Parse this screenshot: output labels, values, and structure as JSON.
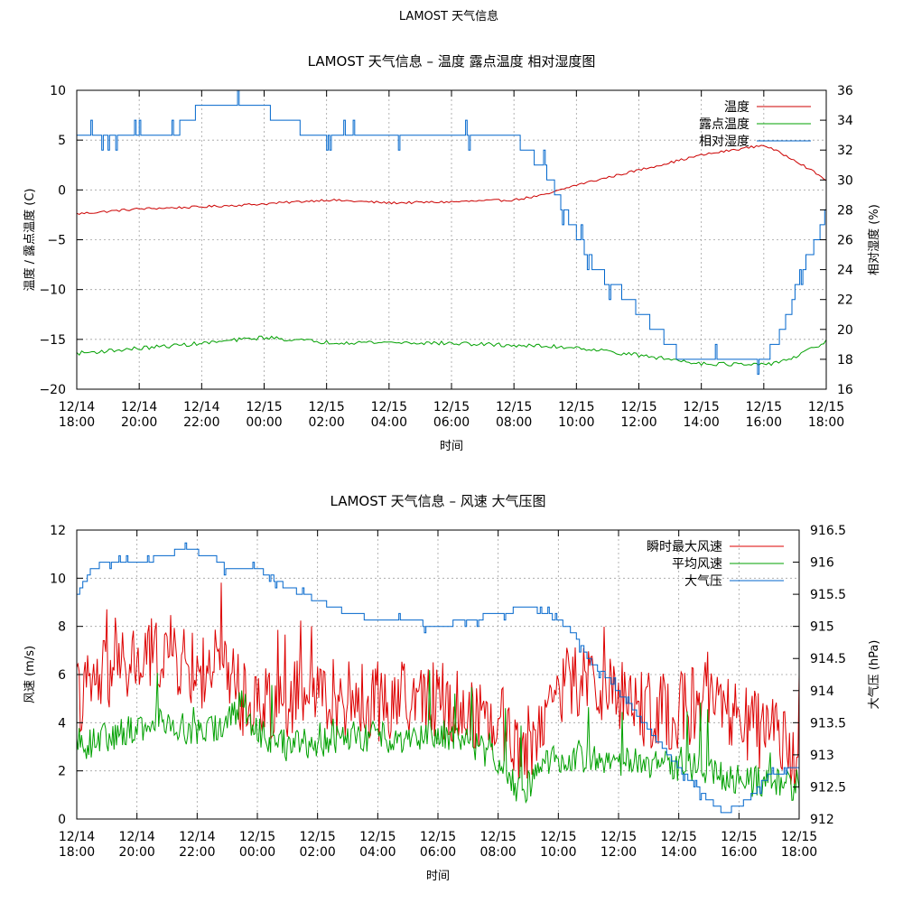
{
  "page_title": "LAMOST 天气信息",
  "chart_data": [
    {
      "type": "line",
      "title": "LAMOST 天气信息 – 温度 露点温度 相对湿度图",
      "xlabel": "时间",
      "ylabel": "温度 / 露点温度 (C)",
      "y2label": "相对湿度 (%)",
      "x_tick_labels": [
        [
          "12/14",
          "18:00"
        ],
        [
          "12/14",
          "20:00"
        ],
        [
          "12/14",
          "22:00"
        ],
        [
          "12/15",
          "00:00"
        ],
        [
          "12/15",
          "02:00"
        ],
        [
          "12/15",
          "04:00"
        ],
        [
          "12/15",
          "06:00"
        ],
        [
          "12/15",
          "08:00"
        ],
        [
          "12/15",
          "10:00"
        ],
        [
          "12/15",
          "12:00"
        ],
        [
          "12/15",
          "14:00"
        ],
        [
          "12/15",
          "16:00"
        ],
        [
          "12/15",
          "18:00"
        ]
      ],
      "xlim": [
        0,
        24
      ],
      "ylim": [
        -20,
        10
      ],
      "y_ticks": [
        10,
        5,
        0,
        -5,
        -10,
        -15,
        -20
      ],
      "y_tick_labels": [
        "10",
        "5",
        "0",
        "−5",
        "−10",
        "−15",
        "−20"
      ],
      "y2lim": [
        16,
        36
      ],
      "y2_ticks": [
        36,
        34,
        32,
        30,
        28,
        26,
        24,
        22,
        20,
        18,
        16
      ],
      "y2_tick_labels": [
        "36",
        "34",
        "32",
        "30",
        "28",
        "26",
        "24",
        "22",
        "20",
        "18",
        "16"
      ],
      "legend_position": "top-right",
      "series": [
        {
          "name": "温度",
          "color": "#cc0000",
          "axis": "y",
          "noise": 0.12,
          "points": [
            [
              0,
              -2.4
            ],
            [
              2,
              -1.9
            ],
            [
              4,
              -1.7
            ],
            [
              6,
              -1.4
            ],
            [
              8,
              -1.0
            ],
            [
              10,
              -1.3
            ],
            [
              12,
              -1.2
            ],
            [
              14,
              -1.0
            ],
            [
              15,
              -0.5
            ],
            [
              16,
              0.5
            ],
            [
              18,
              2.0
            ],
            [
              20,
              3.5
            ],
            [
              22,
              4.5
            ],
            [
              23,
              3.0
            ],
            [
              24,
              1.0
            ]
          ]
        },
        {
          "name": "露点温度",
          "color": "#00a000",
          "axis": "y",
          "noise": 0.2,
          "points": [
            [
              0,
              -16.4
            ],
            [
              2,
              -15.9
            ],
            [
              4,
              -15.4
            ],
            [
              6,
              -14.8
            ],
            [
              8,
              -15.3
            ],
            [
              10,
              -15.3
            ],
            [
              12,
              -15.4
            ],
            [
              14,
              -15.6
            ],
            [
              16,
              -15.8
            ],
            [
              18,
              -16.6
            ],
            [
              20,
              -17.4
            ],
            [
              22,
              -17.6
            ],
            [
              23,
              -16.8
            ],
            [
              24,
              -15.2
            ]
          ]
        },
        {
          "name": "相对湿度",
          "color": "#0066cc",
          "axis": "y2",
          "noise": 0,
          "points": [
            [
              0,
              33
            ],
            [
              3,
              33
            ],
            [
              3.5,
              34
            ],
            [
              4,
              35
            ],
            [
              6,
              35
            ],
            [
              6.3,
              34
            ],
            [
              7,
              33.6
            ],
            [
              8,
              33
            ],
            [
              14,
              33
            ],
            [
              14.4,
              32
            ],
            [
              14.9,
              31
            ],
            [
              15.2,
              30
            ],
            [
              15.6,
              28
            ],
            [
              16.1,
              26
            ],
            [
              16.6,
              24
            ],
            [
              17.2,
              23
            ],
            [
              17.7,
              22
            ],
            [
              18.1,
              21
            ],
            [
              18.6,
              20
            ],
            [
              19,
              19
            ],
            [
              19.4,
              18
            ],
            [
              20,
              18
            ],
            [
              21,
              18
            ],
            [
              22,
              18
            ],
            [
              22.4,
              19
            ],
            [
              22.8,
              21
            ],
            [
              23.2,
              24
            ],
            [
              23.7,
              26
            ],
            [
              24,
              28
            ]
          ]
        }
      ]
    },
    {
      "type": "line",
      "title": "LAMOST 天气信息 – 风速 大气压图",
      "xlabel": "时间",
      "ylabel": "风速 (m/s)",
      "y2label": "大气压 (hPa)",
      "x_tick_labels": [
        [
          "12/14",
          "18:00"
        ],
        [
          "12/14",
          "20:00"
        ],
        [
          "12/14",
          "22:00"
        ],
        [
          "12/15",
          "00:00"
        ],
        [
          "12/15",
          "02:00"
        ],
        [
          "12/15",
          "04:00"
        ],
        [
          "12/15",
          "06:00"
        ],
        [
          "12/15",
          "08:00"
        ],
        [
          "12/15",
          "10:00"
        ],
        [
          "12/15",
          "12:00"
        ],
        [
          "12/15",
          "14:00"
        ],
        [
          "12/15",
          "16:00"
        ],
        [
          "12/15",
          "18:00"
        ]
      ],
      "xlim": [
        0,
        24
      ],
      "ylim": [
        0,
        12
      ],
      "y_ticks": [
        12,
        10,
        8,
        6,
        4,
        2,
        0
      ],
      "y_tick_labels": [
        "12",
        "10",
        "8",
        "6",
        "4",
        "2",
        "0"
      ],
      "y2lim": [
        912,
        916.5
      ],
      "y2_ticks": [
        916.5,
        916,
        915.5,
        915,
        914.5,
        914,
        913.5,
        913,
        912.5,
        912
      ],
      "y2_tick_labels": [
        "916.5",
        "916",
        "915.5",
        "915",
        "914.5",
        "914",
        "913.5",
        "913",
        "912.5",
        "912"
      ],
      "legend_position": "top-right",
      "series": [
        {
          "name": "瞬时最大风速",
          "color": "#dd0000",
          "axis": "y",
          "noise": 1.6,
          "points": [
            [
              0,
              5
            ],
            [
              1,
              6
            ],
            [
              2,
              6.5
            ],
            [
              3,
              7
            ],
            [
              4,
              6
            ],
            [
              5,
              6.5
            ],
            [
              5.5,
              5
            ],
            [
              6,
              4.8
            ],
            [
              7,
              5
            ],
            [
              8,
              5.2
            ],
            [
              9,
              5
            ],
            [
              10,
              4.8
            ],
            [
              11,
              5
            ],
            [
              12,
              5
            ],
            [
              13,
              4.5
            ],
            [
              14,
              4.2
            ],
            [
              14.8,
              2.8
            ],
            [
              15.2,
              3.5
            ],
            [
              16,
              5.5
            ],
            [
              17,
              5.8
            ],
            [
              18,
              5.2
            ],
            [
              19,
              4.5
            ],
            [
              20,
              4.5
            ],
            [
              21,
              5
            ],
            [
              22,
              4
            ],
            [
              23,
              3.5
            ],
            [
              24,
              2.8
            ]
          ]
        },
        {
          "name": "平均风速",
          "color": "#00a000",
          "axis": "y",
          "noise": 0.65,
          "points": [
            [
              0,
              3
            ],
            [
              1,
              3.4
            ],
            [
              2,
              3.8
            ],
            [
              3,
              4.2
            ],
            [
              4,
              3.5
            ],
            [
              5,
              4
            ],
            [
              5.5,
              4.8
            ],
            [
              6,
              3.6
            ],
            [
              7,
              3
            ],
            [
              8,
              3.2
            ],
            [
              9,
              3.4
            ],
            [
              10,
              3.4
            ],
            [
              11,
              3.4
            ],
            [
              12,
              3.6
            ],
            [
              13,
              3.2
            ],
            [
              14,
              2.5
            ],
            [
              14.8,
              1
            ],
            [
              15.2,
              1.8
            ],
            [
              16,
              2.6
            ],
            [
              17,
              2.5
            ],
            [
              18,
              2.4
            ],
            [
              19,
              2.3
            ],
            [
              20,
              2.2
            ],
            [
              21,
              2
            ],
            [
              22,
              1.6
            ],
            [
              23,
              1.5
            ],
            [
              24,
              1.4
            ]
          ]
        },
        {
          "name": "大气压",
          "color": "#0066cc",
          "axis": "y2",
          "noise": 0,
          "points": [
            [
              0,
              915.5
            ],
            [
              0.5,
              915.9
            ],
            [
              1,
              916.0
            ],
            [
              2,
              916.0
            ],
            [
              3,
              916.1
            ],
            [
              3.5,
              916.2
            ],
            [
              4.5,
              916.1
            ],
            [
              5,
              915.9
            ],
            [
              6,
              915.9
            ],
            [
              7,
              915.6
            ],
            [
              8,
              915.4
            ],
            [
              9,
              915.2
            ],
            [
              10,
              915.1
            ],
            [
              11,
              915.1
            ],
            [
              12,
              915.0
            ],
            [
              13,
              915.1
            ],
            [
              14,
              915.2
            ],
            [
              15,
              915.3
            ],
            [
              15.5,
              915.2
            ],
            [
              16,
              915.1
            ],
            [
              16.5,
              914.9
            ],
            [
              17,
              914.5
            ],
            [
              18,
              914.0
            ],
            [
              19,
              913.4
            ],
            [
              20,
              912.8
            ],
            [
              21,
              912.3
            ],
            [
              21.5,
              912.1
            ],
            [
              22,
              912.2
            ],
            [
              22.5,
              912.4
            ],
            [
              23,
              912.7
            ],
            [
              24,
              912.8
            ]
          ]
        }
      ]
    }
  ]
}
